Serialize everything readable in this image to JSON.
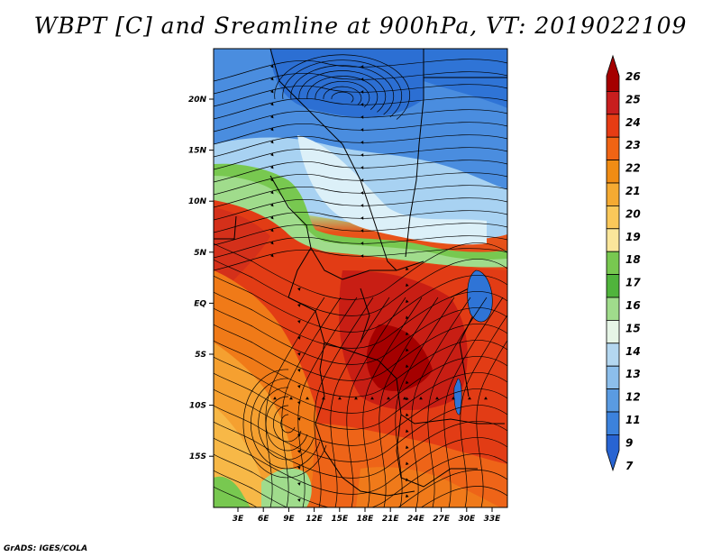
{
  "title": "WBPT [C] and Sreamline at 900hPa, VT: 2019022109",
  "credit": "GrADS: IGES/COLA",
  "map": {
    "lon_ticks": [
      "3E",
      "6E",
      "9E",
      "12E",
      "15E",
      "18E",
      "21E",
      "24E",
      "27E",
      "30E",
      "33E"
    ],
    "lat_ticks": [
      "20N",
      "15N",
      "10N",
      "5N",
      "EQ",
      "5S",
      "10S",
      "15S"
    ]
  },
  "colorbar": {
    "labels": [
      "26",
      "25",
      "24",
      "23",
      "22",
      "21",
      "20",
      "19",
      "18",
      "17",
      "16",
      "15",
      "14",
      "13",
      "12",
      "11",
      "9",
      "7"
    ],
    "colors": [
      "#a50000",
      "#c81e1e",
      "#e63c14",
      "#f06414",
      "#f08c14",
      "#f5aa32",
      "#fac85a",
      "#fae69b",
      "#78c850",
      "#50b43c",
      "#a0dc8c",
      "#e6f5e6",
      "#b4d7f0",
      "#8cbeeb",
      "#5a9be1",
      "#3c82dc",
      "#2864d2"
    ]
  }
}
